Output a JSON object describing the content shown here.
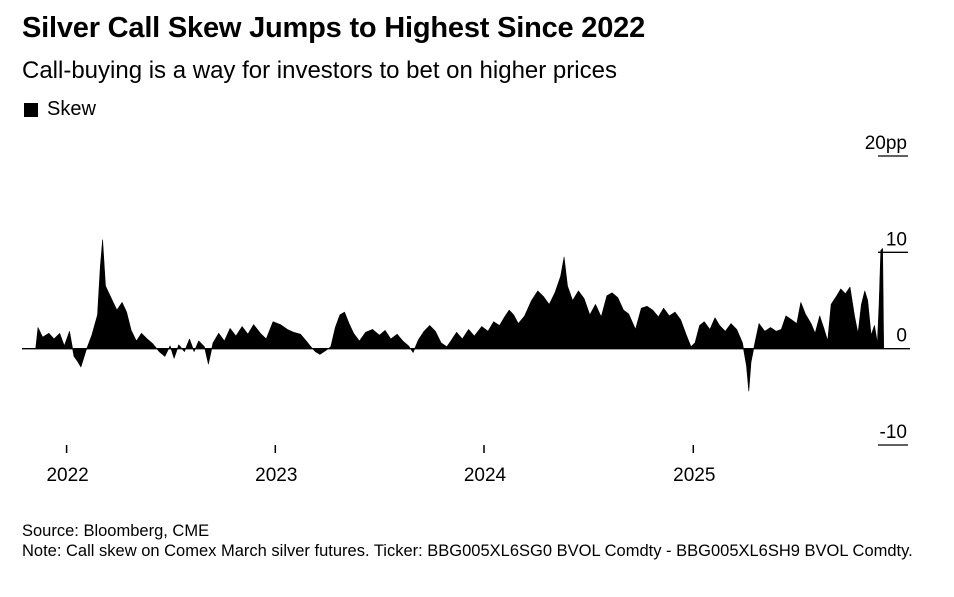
{
  "title": "Silver Call Skew Jumps to Highest Since 2022",
  "subtitle": "Call-buying is a way for investors to bet on higher prices",
  "footer": {
    "source": "Source: Bloomberg, CME",
    "note": "Note: Call skew on Comex March silver futures. Ticker: BBG005XL6SG0 BVOL Comdty - BBG005XL6SH9 BVOL Comdty."
  },
  "colors": {
    "series": "#000000",
    "axis": "#000000"
  },
  "chart_data": {
    "type": "area",
    "title": "Silver Call Skew Jumps to Highest Since 2022",
    "xlabel": "",
    "ylabel": "",
    "ylim": [
      -10,
      20
    ],
    "y_ticks": [
      {
        "value": 20,
        "label": "20pp"
      },
      {
        "value": 10,
        "label": "10"
      },
      {
        "value": 0,
        "label": "0"
      },
      {
        "value": -10,
        "label": "-10"
      }
    ],
    "x_range": [
      "2021-10-15",
      "2026-01-15"
    ],
    "x_ticks": [
      {
        "date": "2022-01-01",
        "label": "2022"
      },
      {
        "date": "2023-01-01",
        "label": "2023"
      },
      {
        "date": "2024-01-01",
        "label": "2024"
      },
      {
        "date": "2025-01-01",
        "label": "2025"
      }
    ],
    "legend_position": "top-left",
    "grid": false,
    "series": [
      {
        "name": "Skew",
        "points": [
          [
            "2021-11-08",
            0
          ],
          [
            "2021-11-12",
            2.2
          ],
          [
            "2021-11-20",
            1.2
          ],
          [
            "2021-12-01",
            1.6
          ],
          [
            "2021-12-10",
            1.0
          ],
          [
            "2021-12-20",
            1.6
          ],
          [
            "2021-12-28",
            0.3
          ],
          [
            "2022-01-06",
            1.8
          ],
          [
            "2022-01-14",
            -0.8
          ],
          [
            "2022-01-20",
            -1.3
          ],
          [
            "2022-01-26",
            -1.9
          ],
          [
            "2022-02-04",
            -0.2
          ],
          [
            "2022-02-14",
            1.4
          ],
          [
            "2022-02-24",
            3.5
          ],
          [
            "2022-03-01",
            8.5
          ],
          [
            "2022-03-05",
            11.3
          ],
          [
            "2022-03-10",
            6.5
          ],
          [
            "2022-03-18",
            5.5
          ],
          [
            "2022-03-30",
            4.0
          ],
          [
            "2022-04-08",
            4.8
          ],
          [
            "2022-04-16",
            3.8
          ],
          [
            "2022-04-24",
            1.9
          ],
          [
            "2022-05-03",
            0.8
          ],
          [
            "2022-05-12",
            1.6
          ],
          [
            "2022-05-22",
            1.0
          ],
          [
            "2022-06-01",
            0.5
          ],
          [
            "2022-06-12",
            -0.3
          ],
          [
            "2022-06-22",
            -0.8
          ],
          [
            "2022-07-01",
            0.3
          ],
          [
            "2022-07-08",
            -1.0
          ],
          [
            "2022-07-16",
            0.4
          ],
          [
            "2022-07-26",
            -0.3
          ],
          [
            "2022-08-04",
            1.0
          ],
          [
            "2022-08-12",
            -0.3
          ],
          [
            "2022-08-20",
            0.8
          ],
          [
            "2022-08-30",
            0.2
          ],
          [
            "2022-09-06",
            -1.6
          ],
          [
            "2022-09-14",
            0.6
          ],
          [
            "2022-09-24",
            1.6
          ],
          [
            "2022-10-04",
            0.8
          ],
          [
            "2022-10-14",
            2.1
          ],
          [
            "2022-10-24",
            1.3
          ],
          [
            "2022-11-04",
            2.3
          ],
          [
            "2022-11-14",
            1.5
          ],
          [
            "2022-11-24",
            2.5
          ],
          [
            "2022-12-06",
            1.6
          ],
          [
            "2022-12-16",
            1.0
          ],
          [
            "2022-12-28",
            2.8
          ],
          [
            "2023-01-10",
            2.5
          ],
          [
            "2023-01-22",
            2.0
          ],
          [
            "2023-02-02",
            1.7
          ],
          [
            "2023-02-14",
            1.5
          ],
          [
            "2023-02-24",
            0.8
          ],
          [
            "2023-03-04",
            0.2
          ],
          [
            "2023-03-12",
            -0.3
          ],
          [
            "2023-03-20",
            -0.6
          ],
          [
            "2023-03-30",
            -0.2
          ],
          [
            "2023-04-08",
            0.2
          ],
          [
            "2023-04-16",
            2.2
          ],
          [
            "2023-04-24",
            3.5
          ],
          [
            "2023-05-02",
            3.8
          ],
          [
            "2023-05-10",
            2.6
          ],
          [
            "2023-05-18",
            1.6
          ],
          [
            "2023-05-28",
            0.8
          ],
          [
            "2023-06-08",
            1.7
          ],
          [
            "2023-06-20",
            2.0
          ],
          [
            "2023-07-02",
            1.4
          ],
          [
            "2023-07-12",
            1.9
          ],
          [
            "2023-07-22",
            1.0
          ],
          [
            "2023-08-02",
            1.5
          ],
          [
            "2023-08-12",
            0.8
          ],
          [
            "2023-08-22",
            0.3
          ],
          [
            "2023-08-30",
            -0.4
          ],
          [
            "2023-09-08",
            0.9
          ],
          [
            "2023-09-18",
            1.8
          ],
          [
            "2023-09-28",
            2.4
          ],
          [
            "2023-10-08",
            1.8
          ],
          [
            "2023-10-18",
            0.6
          ],
          [
            "2023-10-28",
            0.2
          ],
          [
            "2023-11-04",
            0.8
          ],
          [
            "2023-11-14",
            1.7
          ],
          [
            "2023-11-24",
            1.0
          ],
          [
            "2023-12-05",
            2.0
          ],
          [
            "2023-12-15",
            1.3
          ],
          [
            "2023-12-28",
            2.3
          ],
          [
            "2024-01-08",
            1.8
          ],
          [
            "2024-01-18",
            2.8
          ],
          [
            "2024-01-28",
            2.4
          ],
          [
            "2024-02-06",
            3.3
          ],
          [
            "2024-02-14",
            4.0
          ],
          [
            "2024-02-22",
            3.5
          ],
          [
            "2024-03-01",
            2.6
          ],
          [
            "2024-03-12",
            3.4
          ],
          [
            "2024-03-24",
            5.0
          ],
          [
            "2024-04-04",
            6.0
          ],
          [
            "2024-04-14",
            5.4
          ],
          [
            "2024-04-24",
            4.6
          ],
          [
            "2024-05-04",
            5.8
          ],
          [
            "2024-05-14",
            7.5
          ],
          [
            "2024-05-20",
            9.5
          ],
          [
            "2024-05-26",
            6.5
          ],
          [
            "2024-06-04",
            5.0
          ],
          [
            "2024-06-14",
            6.0
          ],
          [
            "2024-06-24",
            5.2
          ],
          [
            "2024-07-04",
            3.5
          ],
          [
            "2024-07-14",
            4.6
          ],
          [
            "2024-07-24",
            3.3
          ],
          [
            "2024-08-03",
            5.5
          ],
          [
            "2024-08-12",
            5.8
          ],
          [
            "2024-08-22",
            5.3
          ],
          [
            "2024-09-01",
            4.0
          ],
          [
            "2024-09-10",
            3.6
          ],
          [
            "2024-09-22",
            2.0
          ],
          [
            "2024-10-02",
            4.2
          ],
          [
            "2024-10-12",
            4.4
          ],
          [
            "2024-10-22",
            4.0
          ],
          [
            "2024-11-01",
            3.3
          ],
          [
            "2024-11-10",
            4.2
          ],
          [
            "2024-11-20",
            3.4
          ],
          [
            "2024-11-30",
            3.8
          ],
          [
            "2024-12-10",
            3.0
          ],
          [
            "2024-12-20",
            1.4
          ],
          [
            "2024-12-28",
            0.2
          ],
          [
            "2025-01-04",
            0.6
          ],
          [
            "2025-01-12",
            2.4
          ],
          [
            "2025-01-20",
            2.8
          ],
          [
            "2025-01-30",
            2.0
          ],
          [
            "2025-02-08",
            3.2
          ],
          [
            "2025-02-16",
            2.4
          ],
          [
            "2025-02-26",
            1.8
          ],
          [
            "2025-03-08",
            2.6
          ],
          [
            "2025-03-18",
            2.0
          ],
          [
            "2025-03-28",
            0.6
          ],
          [
            "2025-04-04",
            -1.8
          ],
          [
            "2025-04-08",
            -4.4
          ],
          [
            "2025-04-12",
            -1.4
          ],
          [
            "2025-04-18",
            0.4
          ],
          [
            "2025-04-26",
            2.6
          ],
          [
            "2025-05-06",
            1.8
          ],
          [
            "2025-05-16",
            2.2
          ],
          [
            "2025-05-26",
            1.8
          ],
          [
            "2025-06-04",
            2.0
          ],
          [
            "2025-06-12",
            3.4
          ],
          [
            "2025-06-22",
            3.0
          ],
          [
            "2025-07-01",
            2.6
          ],
          [
            "2025-07-08",
            4.8
          ],
          [
            "2025-07-16",
            3.6
          ],
          [
            "2025-07-26",
            2.6
          ],
          [
            "2025-08-02",
            1.6
          ],
          [
            "2025-08-10",
            3.4
          ],
          [
            "2025-08-18",
            2.0
          ],
          [
            "2025-08-24",
            0.8
          ],
          [
            "2025-08-30",
            4.6
          ],
          [
            "2025-09-08",
            5.4
          ],
          [
            "2025-09-16",
            6.2
          ],
          [
            "2025-09-24",
            5.7
          ],
          [
            "2025-10-02",
            6.4
          ],
          [
            "2025-10-10",
            3.4
          ],
          [
            "2025-10-16",
            1.6
          ],
          [
            "2025-10-22",
            4.6
          ],
          [
            "2025-10-28",
            6.0
          ],
          [
            "2025-11-02",
            5.0
          ],
          [
            "2025-11-08",
            1.4
          ],
          [
            "2025-11-14",
            2.4
          ],
          [
            "2025-11-19",
            0.6
          ],
          [
            "2025-11-22",
            4.6
          ],
          [
            "2025-11-25",
            10.2
          ],
          [
            "2025-11-28",
            10.4
          ],
          [
            "2025-11-30",
            0
          ]
        ]
      }
    ]
  }
}
